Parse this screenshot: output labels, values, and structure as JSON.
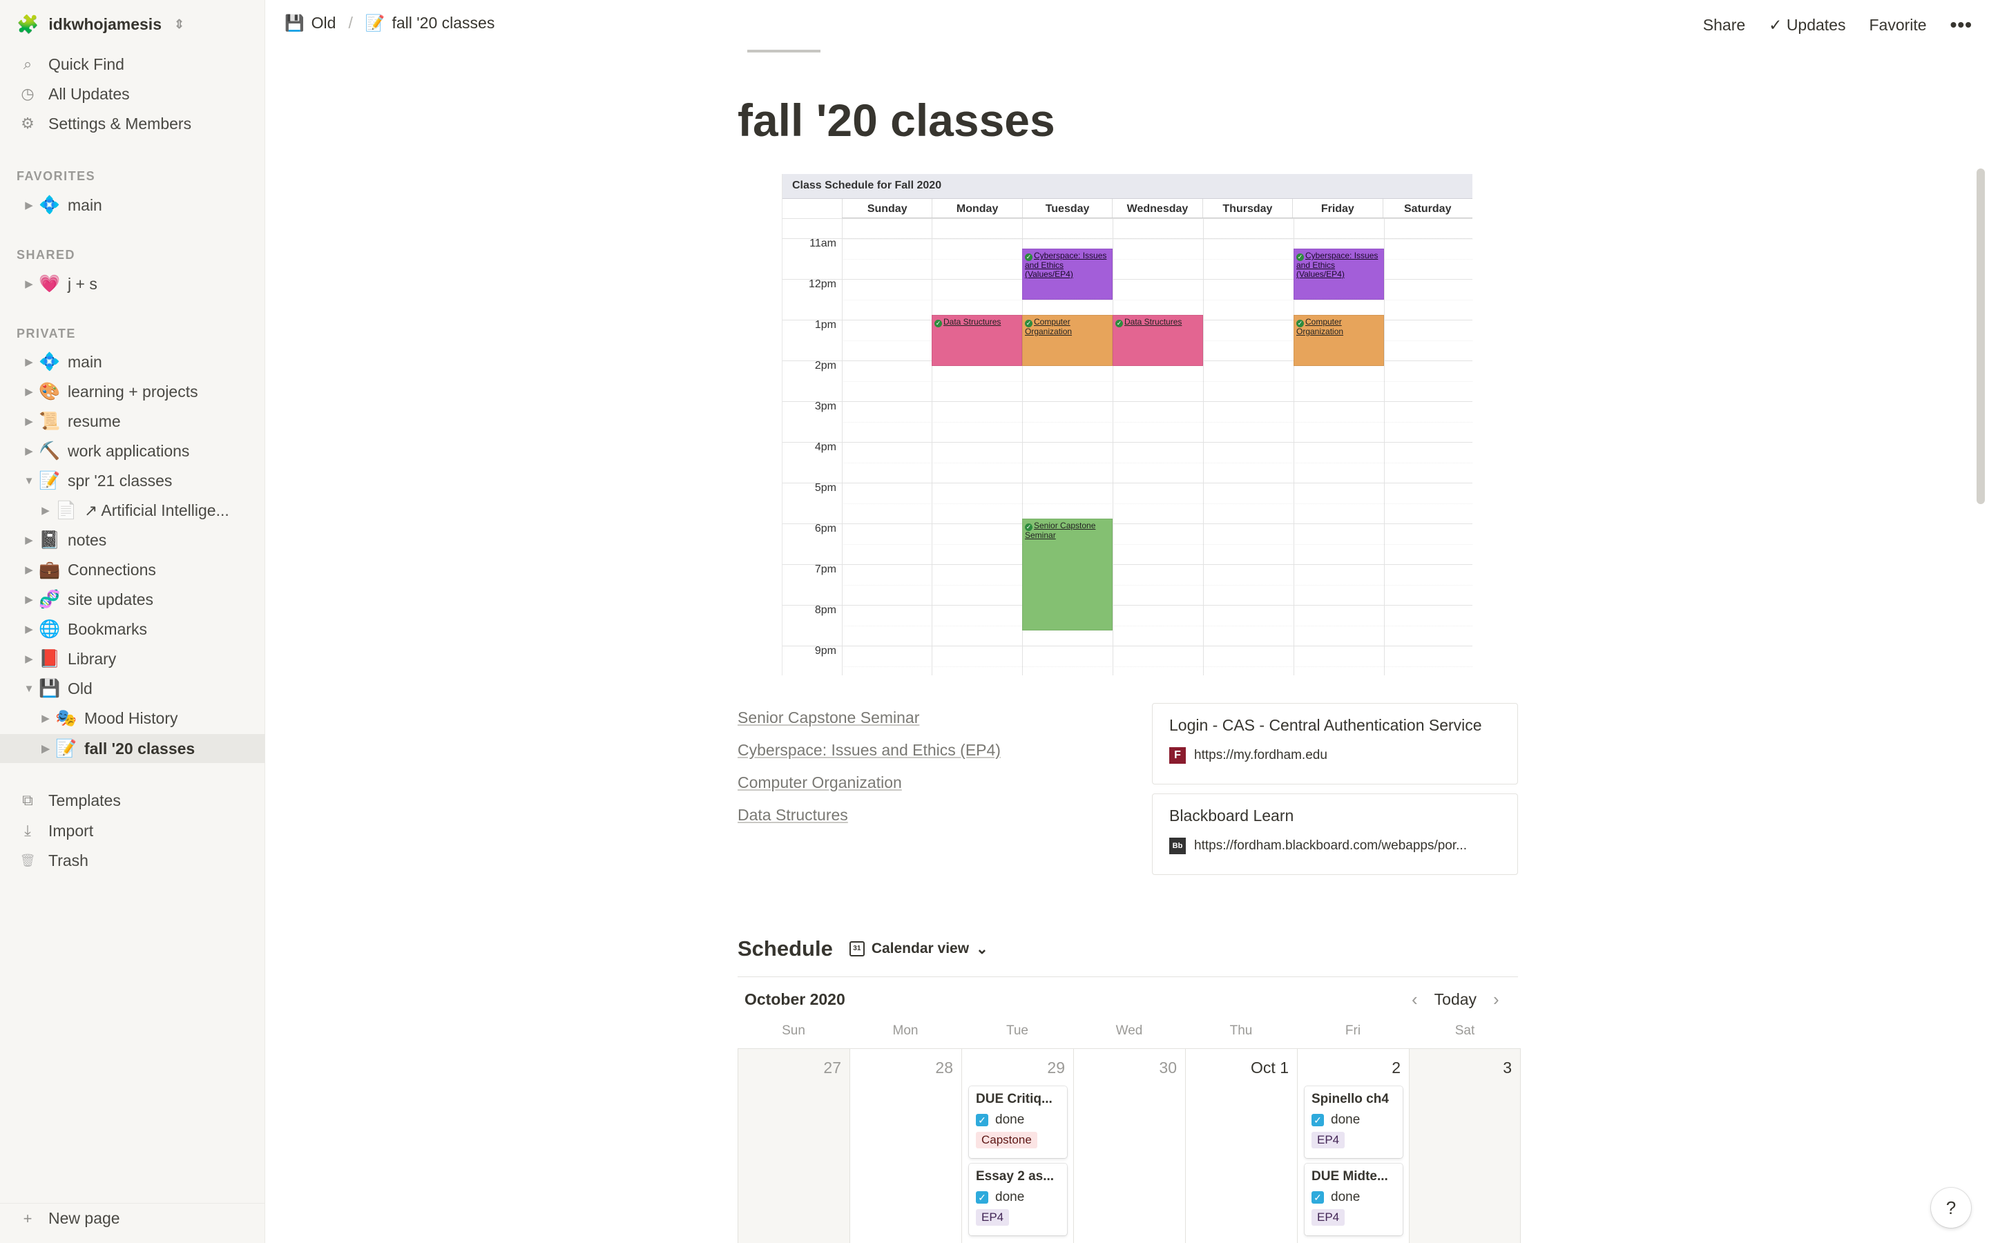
{
  "workspace": {
    "name": "idkwhojamesis",
    "emoji": "🧩"
  },
  "sidebar": {
    "top": [
      {
        "icon": "search-icon",
        "glyph": "⌕",
        "label": "Quick Find"
      },
      {
        "icon": "clock-icon",
        "glyph": "◷",
        "label": "All Updates"
      },
      {
        "icon": "gear-icon",
        "glyph": "⚙",
        "label": "Settings & Members"
      }
    ],
    "sections": {
      "favorites": "FAVORITES",
      "shared": "SHARED",
      "private": "PRIVATE"
    },
    "favorites": [
      {
        "emoji": "💠",
        "label": "main"
      }
    ],
    "shared": [
      {
        "emoji": "💗",
        "label": "j + s"
      }
    ],
    "private": [
      {
        "emoji": "💠",
        "label": "main"
      },
      {
        "emoji": "🎨",
        "label": "learning + projects"
      },
      {
        "emoji": "📜",
        "label": "resume"
      },
      {
        "emoji": "⛏️",
        "label": "work applications"
      },
      {
        "emoji": "📝",
        "label": "spr '21 classes"
      },
      {
        "emoji": "📄",
        "label": "↗ Artificial Intellige..."
      },
      {
        "emoji": "📓",
        "label": "notes"
      },
      {
        "emoji": "💼",
        "label": "Connections"
      },
      {
        "emoji": "🧬",
        "label": "site updates"
      },
      {
        "emoji": "🌐",
        "label": "Bookmarks"
      },
      {
        "emoji": "📕",
        "label": "Library"
      },
      {
        "emoji": "💾",
        "label": "Old"
      },
      {
        "emoji": "🎭",
        "label": "Mood History"
      },
      {
        "emoji": "📝",
        "label": "fall '20 classes"
      }
    ],
    "bottom": [
      {
        "icon": "templates-icon",
        "glyph": "⧉",
        "label": "Templates"
      },
      {
        "icon": "import-icon",
        "glyph": "⤓",
        "label": "Import"
      },
      {
        "icon": "trash-icon",
        "glyph": "🗑",
        "label": "Trash"
      }
    ],
    "new_page": "New page"
  },
  "breadcrumb": {
    "parent_emoji": "💾",
    "parent": "Old",
    "sep": "/",
    "current_emoji": "📝",
    "current": "fall '20 classes"
  },
  "topbar": {
    "share": "Share",
    "updates": "Updates",
    "favorite": "Favorite",
    "more": "•••"
  },
  "page": {
    "title": "fall '20 classes"
  },
  "schedule_image": {
    "title": "Class Schedule for Fall 2020",
    "days": [
      "Sunday",
      "Monday",
      "Tuesday",
      "Wednesday",
      "Thursday",
      "Friday",
      "Saturday"
    ],
    "hours": [
      "11am",
      "12pm",
      "1pm",
      "2pm",
      "3pm",
      "4pm",
      "5pm",
      "6pm",
      "7pm",
      "8pm",
      "9pm"
    ],
    "events": {
      "cyber_tue": "Cyberspace: Issues and Ethics (Values/EP4)",
      "cyber_fri": "Cyberspace: Issues and Ethics (Values/EP4)",
      "ds_mon": "Data Structures",
      "co_tue": "Computer Organization",
      "ds_wed": "Data Structures",
      "co_fri": "Computer Organization",
      "capstone_tue": "Senior Capstone Seminar"
    }
  },
  "links": [
    "Senior Capstone Seminar",
    "Cyberspace: Issues and Ethics (EP4)",
    "Computer Organization",
    "Data Structures"
  ],
  "bookmarks": [
    {
      "title": "Login - CAS - Central Authentication Service",
      "url": "https://my.fordham.edu",
      "favicon": "F"
    },
    {
      "title": "Blackboard Learn",
      "url": "https://fordham.blackboard.com/webapps/por...",
      "favicon": "Bb"
    }
  ],
  "calendar": {
    "heading": "Schedule",
    "view": "Calendar view",
    "month": "October 2020",
    "today": "Today",
    "dow": [
      "Sun",
      "Mon",
      "Tue",
      "Wed",
      "Thu",
      "Fri",
      "Sat"
    ],
    "days": [
      "27",
      "28",
      "29",
      "30",
      "Oct 1",
      "2",
      "3"
    ],
    "cards": {
      "tue1": {
        "title": "DUE Critiq...",
        "status": "done",
        "tag": "Capstone"
      },
      "tue2": {
        "title": "Essay 2 as...",
        "status": "done",
        "tag": "EP4"
      },
      "fri1": {
        "title": "Spinello ch4",
        "status": "done",
        "tag": "EP4"
      },
      "fri2": {
        "title": "DUE Midte...",
        "status": "done",
        "tag": "EP4"
      }
    }
  },
  "help": "?"
}
